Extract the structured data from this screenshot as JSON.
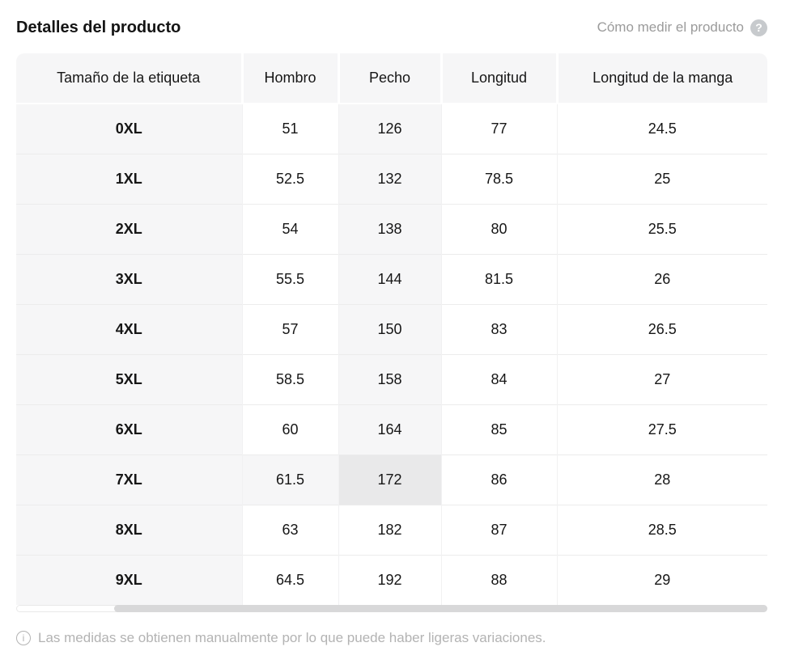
{
  "header": {
    "title": "Detalles del producto",
    "measure_link_label": "Cómo medir el producto"
  },
  "icons": {
    "help": "?",
    "info": "i"
  },
  "table": {
    "columns": [
      "Tamaño de la etiqueta",
      "Hombro",
      "Pecho",
      "Longitud",
      "Longitud de la manga"
    ],
    "rows": [
      {
        "size": "0XL",
        "values": [
          "51",
          "126",
          "77",
          "24.5"
        ]
      },
      {
        "size": "1XL",
        "values": [
          "52.5",
          "132",
          "78.5",
          "25"
        ]
      },
      {
        "size": "2XL",
        "values": [
          "54",
          "138",
          "80",
          "25.5"
        ]
      },
      {
        "size": "3XL",
        "values": [
          "55.5",
          "144",
          "81.5",
          "26"
        ]
      },
      {
        "size": "4XL",
        "values": [
          "57",
          "150",
          "83",
          "26.5"
        ]
      },
      {
        "size": "5XL",
        "values": [
          "58.5",
          "158",
          "84",
          "27"
        ]
      },
      {
        "size": "6XL",
        "values": [
          "60",
          "164",
          "85",
          "27.5"
        ]
      },
      {
        "size": "7XL",
        "values": [
          "61.5",
          "172",
          "86",
          "28"
        ]
      },
      {
        "size": "8XL",
        "values": [
          "63",
          "182",
          "87",
          "28.5"
        ]
      },
      {
        "size": "9XL",
        "values": [
          "64.5",
          "192",
          "88",
          "29"
        ]
      }
    ],
    "highlight": {
      "row_size": "7XL",
      "column": "Pecho",
      "selected_value": "172"
    },
    "colors": {
      "header_bg": "#f6f6f7",
      "shade_bg": "#f6f6f7",
      "selected_cell_bg": "#e9e9ea",
      "row_border": "#ececec"
    }
  },
  "footer": {
    "note": "Las medidas se obtienen manualmente por lo que puede haber ligeras variaciones."
  }
}
